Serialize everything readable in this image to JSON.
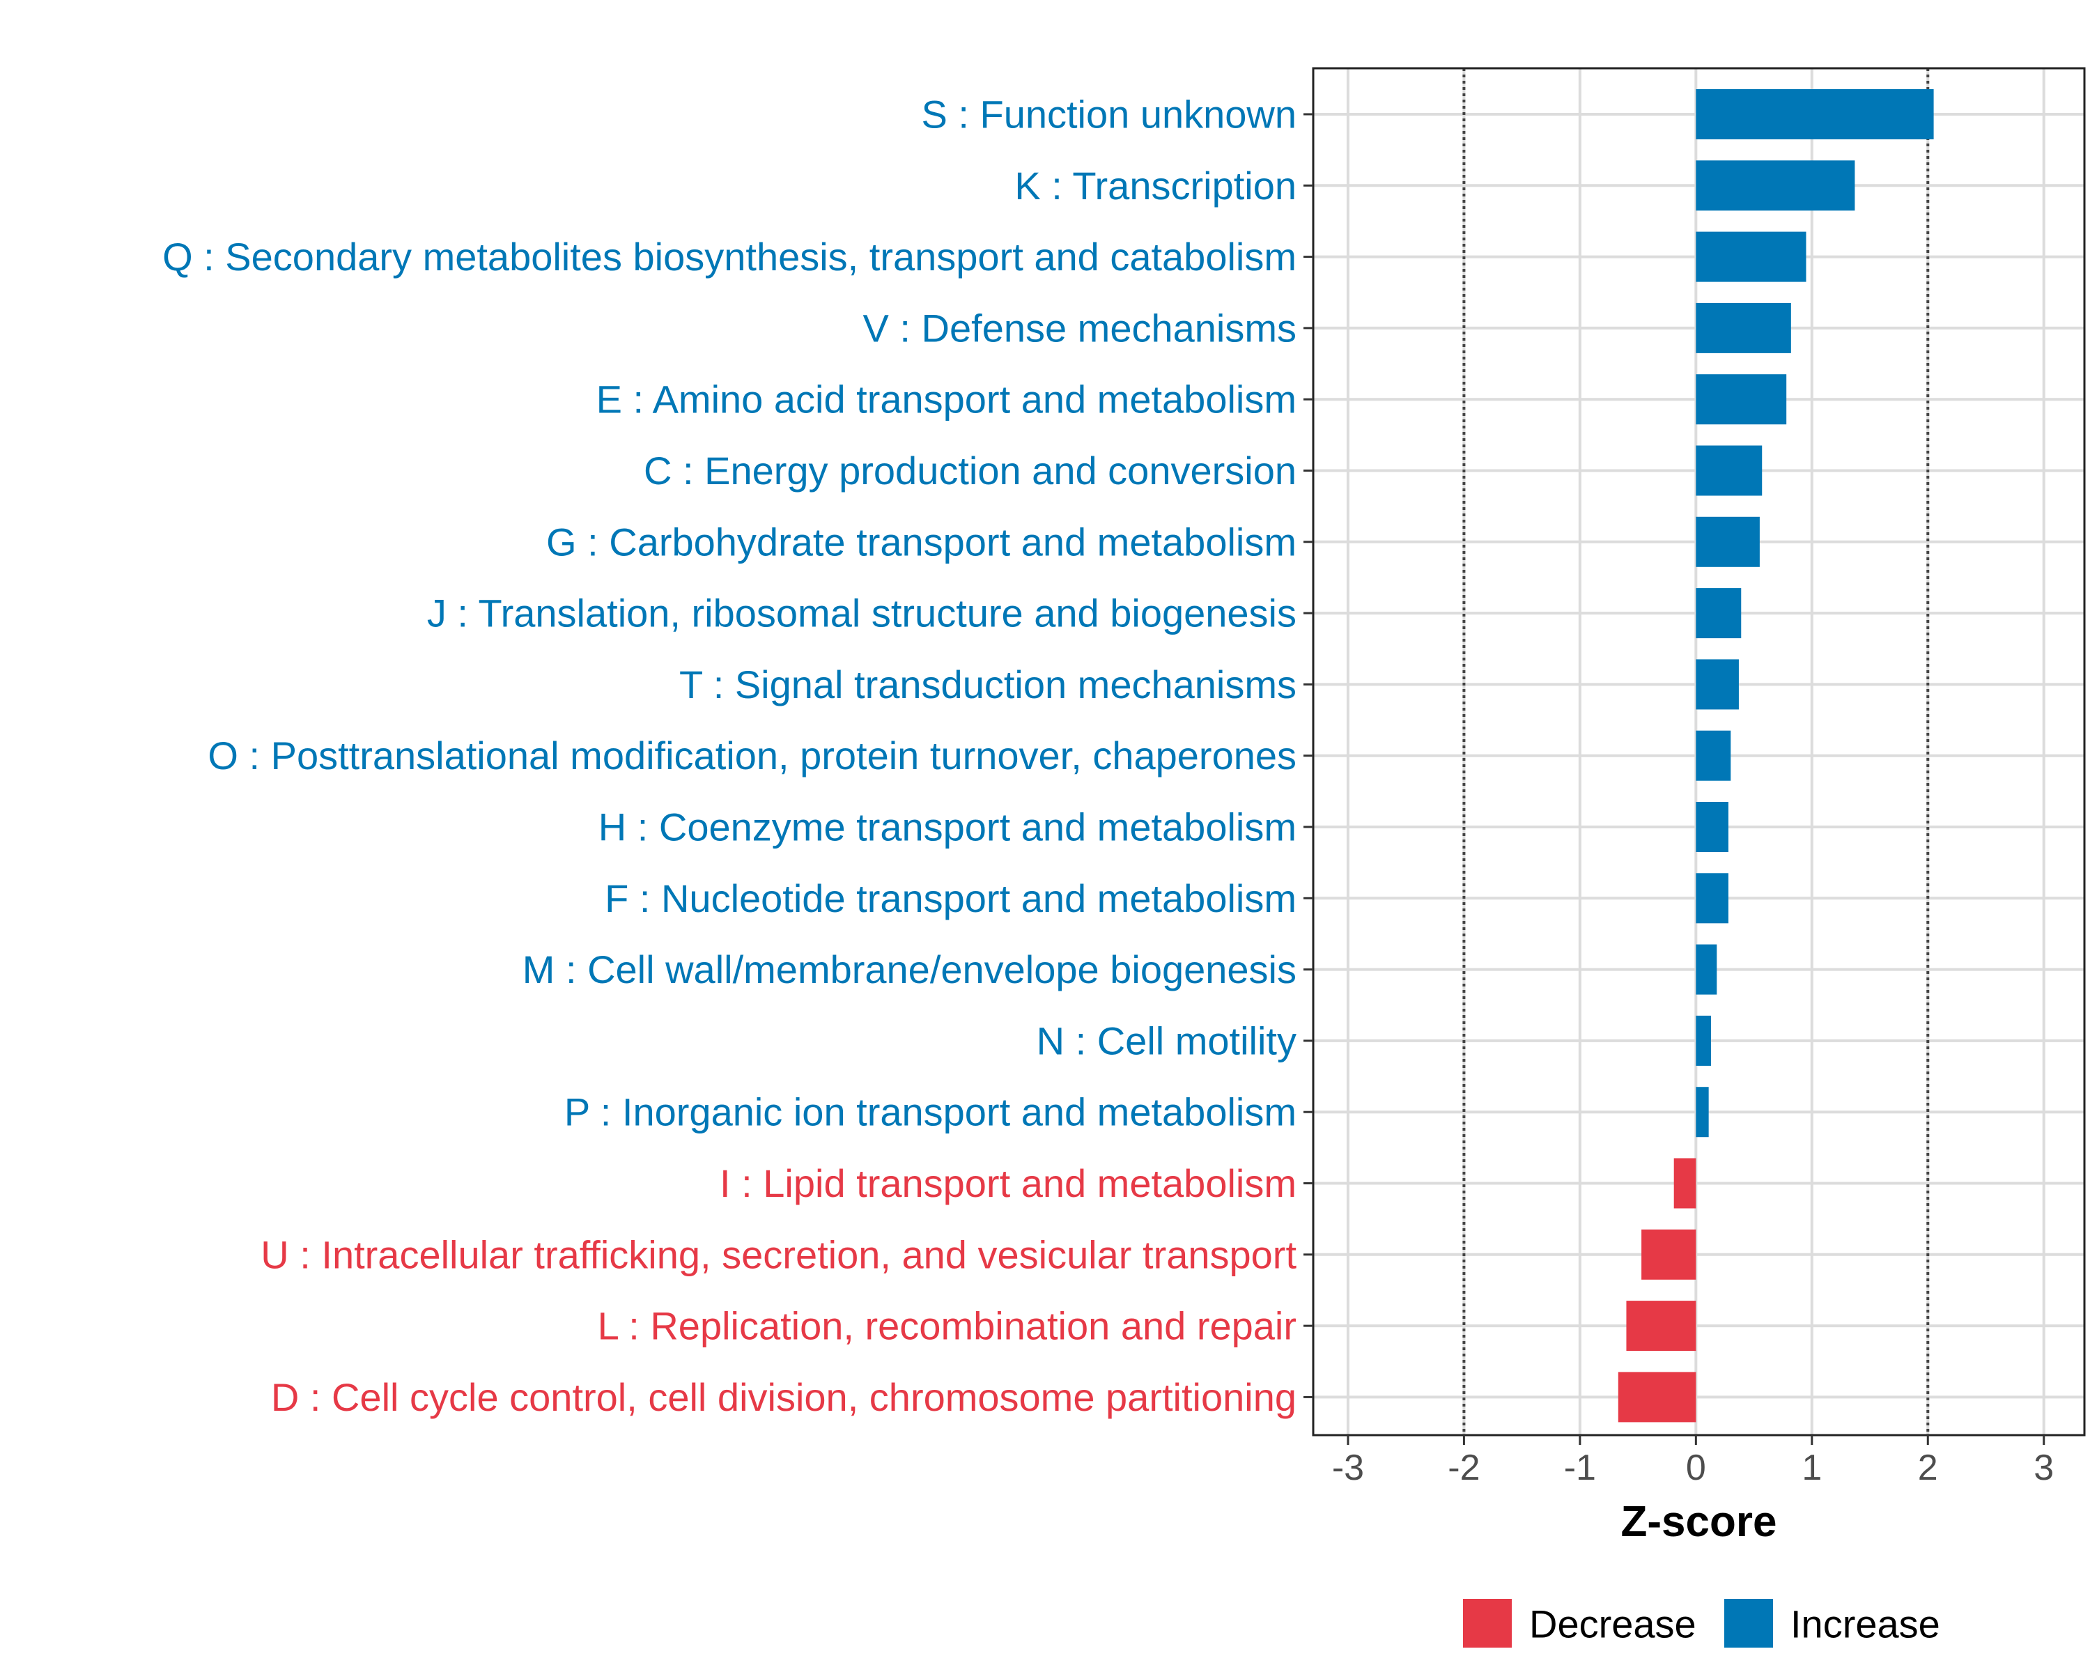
{
  "chart_data": {
    "type": "bar",
    "orientation": "horizontal",
    "xlabel": "Z-score",
    "ylabel": "",
    "xlim": [
      -3.3,
      3.35
    ],
    "x_ticks": [
      -3,
      -2,
      -1,
      0,
      1,
      2,
      3
    ],
    "threshold_lines": [
      -2,
      2
    ],
    "grid": true,
    "legend_position": "bottom",
    "legend": [
      {
        "label": "Decrease",
        "color": "#e63946"
      },
      {
        "label": "Increase",
        "color": "#0077b6"
      }
    ],
    "categories": [
      "S : Function unknown",
      "K : Transcription",
      "Q : Secondary metabolites biosynthesis, transport and catabolism",
      "V : Defense mechanisms",
      "E : Amino acid transport and metabolism",
      "C : Energy production and conversion",
      "G : Carbohydrate transport and metabolism",
      "J : Translation, ribosomal structure and biogenesis",
      "T : Signal transduction mechanisms",
      "O : Posttranslational modification, protein turnover, chaperones",
      "H : Coenzyme transport and metabolism",
      "F : Nucleotide transport and metabolism",
      "M : Cell wall/membrane/envelope biogenesis",
      "N : Cell motility",
      "P : Inorganic ion transport and metabolism",
      "I : Lipid transport and metabolism",
      "U : Intracellular trafficking, secretion, and vesicular transport",
      "L : Replication, recombination and repair",
      "D : Cell cycle control, cell division, chromosome partitioning"
    ],
    "values": [
      2.05,
      1.37,
      0.95,
      0.82,
      0.78,
      0.57,
      0.55,
      0.39,
      0.37,
      0.3,
      0.28,
      0.28,
      0.18,
      0.13,
      0.11,
      -0.19,
      -0.47,
      -0.6,
      -0.67
    ],
    "directions": [
      "Increase",
      "Increase",
      "Increase",
      "Increase",
      "Increase",
      "Increase",
      "Increase",
      "Increase",
      "Increase",
      "Increase",
      "Increase",
      "Increase",
      "Increase",
      "Increase",
      "Increase",
      "Decrease",
      "Decrease",
      "Decrease",
      "Decrease"
    ]
  }
}
